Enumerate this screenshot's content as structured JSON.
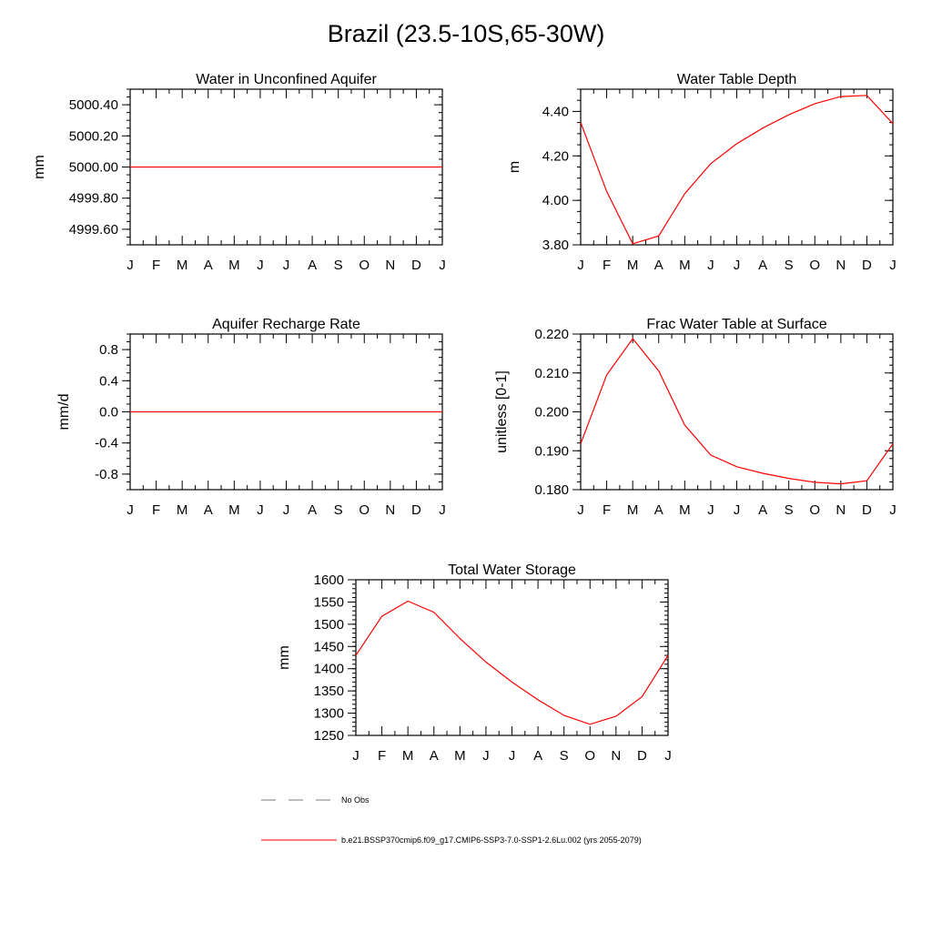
{
  "title": "Brazil (23.5-10S,65-30W)",
  "month_labels": [
    "J",
    "F",
    "M",
    "A",
    "M",
    "J",
    "J",
    "A",
    "S",
    "O",
    "N",
    "D",
    "J"
  ],
  "legend": {
    "obs_label": "No Obs",
    "model_label": "b.e21.BSSP370cmip6.f09_g17.CMIP6-SSP3-7.0-SSP1-2.6Lu.002 (yrs 2055-2079)",
    "model_color": "#ff0000",
    "obs_color": "#777777"
  },
  "chart_data": [
    {
      "type": "line",
      "title": "Water in Unconfined Aquifer",
      "ylabel": "mm",
      "ylim": [
        4999.5,
        5000.5
      ],
      "yticks": [
        5000.4,
        5000.2,
        5000.0,
        4999.8,
        4999.6
      ],
      "ytick_labels": [
        "5000.40",
        "5000.20",
        "5000.00",
        "4999.80",
        "4999.60"
      ],
      "minor_step": 0.05,
      "values": [
        5000,
        5000,
        5000,
        5000,
        5000,
        5000,
        5000,
        5000,
        5000,
        5000,
        5000,
        5000,
        5000
      ]
    },
    {
      "type": "line",
      "title": "Water Table Depth",
      "ylabel": "m",
      "ylim": [
        3.8,
        4.5
      ],
      "yticks": [
        4.4,
        4.2,
        4.0,
        3.8
      ],
      "ytick_labels": [
        "4.40",
        "4.20",
        "4.00",
        "3.80"
      ],
      "minor_step": 0.05,
      "values": [
        4.35,
        4.04,
        3.805,
        3.84,
        4.03,
        4.165,
        4.255,
        4.325,
        4.385,
        4.435,
        4.467,
        4.472,
        4.345
      ]
    },
    {
      "type": "line",
      "title": "Aquifer Recharge Rate",
      "ylabel": "mm/d",
      "ylim": [
        -1.0,
        1.0
      ],
      "yticks": [
        0.8,
        0.4,
        0.0,
        -0.4,
        -0.8
      ],
      "ytick_labels": [
        "0.8",
        "0.4",
        "0.0",
        "-0.4",
        "-0.8"
      ],
      "minor_step": 0.1,
      "values": [
        0,
        0,
        0,
        0,
        0,
        0,
        0,
        0,
        0,
        0,
        0,
        0,
        0
      ]
    },
    {
      "type": "line",
      "title": "Frac Water Table at Surface",
      "ylabel": "unitless [0-1]",
      "ylim": [
        0.18,
        0.22
      ],
      "yticks": [
        0.22,
        0.21,
        0.2,
        0.19,
        0.18
      ],
      "ytick_labels": [
        "0.220",
        "0.210",
        "0.200",
        "0.190",
        "0.180"
      ],
      "minor_step": 0.002,
      "values": [
        0.1918,
        0.2095,
        0.2188,
        0.2105,
        0.1966,
        0.1889,
        0.1859,
        0.1842,
        0.1829,
        0.1819,
        0.1815,
        0.1823,
        0.1918
      ]
    },
    {
      "type": "line",
      "title": "Total Water Storage",
      "ylabel": "mm",
      "ylim": [
        1250,
        1600
      ],
      "yticks": [
        1600,
        1550,
        1500,
        1450,
        1400,
        1350,
        1300,
        1250
      ],
      "ytick_labels": [
        "1600",
        "1550",
        "1500",
        "1450",
        "1400",
        "1350",
        "1300",
        "1250"
      ],
      "minor_step": 10,
      "values": [
        1430,
        1518,
        1552,
        1527,
        1468,
        1415,
        1370,
        1330,
        1295,
        1275,
        1293,
        1337,
        1430
      ]
    }
  ]
}
